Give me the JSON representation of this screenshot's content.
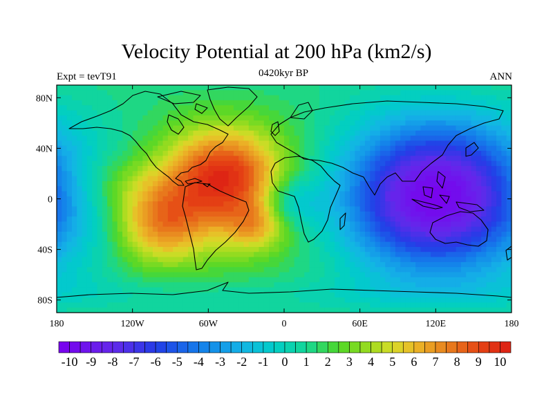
{
  "chart_data": {
    "type": "heatmap",
    "title": "Velocity Potential at 200 hPa (km2/s)",
    "left_label": "Expt = tevT91",
    "center_label": "0420kyr BP",
    "right_label": "ANN",
    "x_ticks": [
      "180",
      "120W",
      "60W",
      "0",
      "60E",
      "120E",
      "180"
    ],
    "x_tick_values": [
      -180,
      -120,
      -60,
      0,
      60,
      120,
      180
    ],
    "y_ticks": [
      "80N",
      "40N",
      "0",
      "40S",
      "80S"
    ],
    "y_tick_values": [
      80,
      40,
      0,
      -40,
      -80
    ],
    "xlim": [
      -180,
      180
    ],
    "ylim": [
      -90,
      90
    ],
    "colorbar": {
      "labels": [
        "-10",
        "-9",
        "-8",
        "-7",
        "-6",
        "-5",
        "-4",
        "-3",
        "-2",
        "-1",
        "0",
        "1",
        "2",
        "3",
        "4",
        "5",
        "6",
        "7",
        "8",
        "9",
        "10"
      ],
      "min": -10.5,
      "max": 10.5,
      "n_bins": 42
    },
    "field_features": [
      {
        "name": "Caribbean/Atlantic maximum",
        "lon": -48,
        "lat": 18,
        "value": 9.5
      },
      {
        "name": "SE Pacific maximum",
        "lon": -98,
        "lat": -20,
        "value": 7.5
      },
      {
        "name": "South Atlantic secondary maximum",
        "lon": -22,
        "lat": -22,
        "value": 5.5
      },
      {
        "name": "NE Pacific maximum",
        "lon": -130,
        "lat": 12,
        "value": 4.0
      },
      {
        "name": "Indo-Pacific minimum",
        "lon": 118,
        "lat": 2,
        "value": -10
      },
      {
        "name": "Equatorial Atlantic relative minimum",
        "lon": 5,
        "lat": -3,
        "value": 0.5
      }
    ]
  }
}
